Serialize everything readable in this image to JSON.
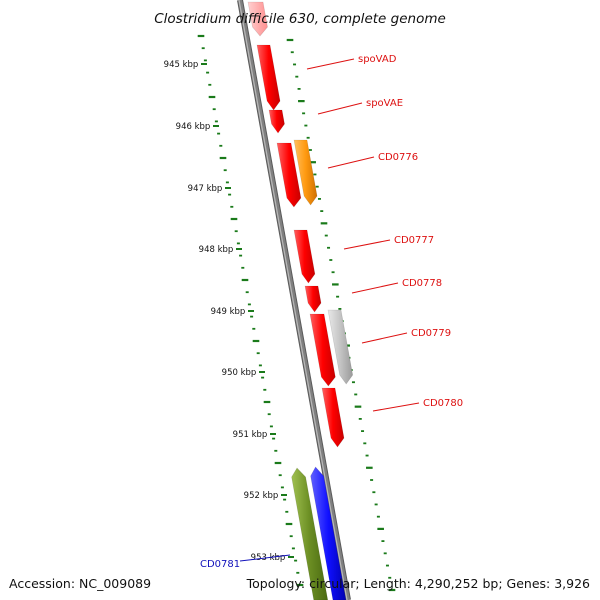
{
  "title": "Clostridium difficile 630, complete genome",
  "accession": "Accession: NC_009089",
  "topology": "Topology: circular; Length: 4,290,252 bp; Genes: 3,926",
  "ruler": [
    "945 kbp",
    "946 kbp",
    "947 kbp",
    "948 kbp",
    "949 kbp",
    "950 kbp",
    "951 kbp",
    "952 kbp",
    "953 kbp"
  ],
  "genes": [
    {
      "label": "spoVAD",
      "color": "#ff1010"
    },
    {
      "label": "spoVAE",
      "color": "#ff1010"
    },
    {
      "label": "CD0776",
      "color": "#ff9a10"
    },
    {
      "label": "CD0777",
      "color": "#ff1010"
    },
    {
      "label": "CD0778",
      "color": "#ff1010"
    },
    {
      "label": "CD0779",
      "color": "#c0c0c0"
    },
    {
      "label": "CD0780",
      "color": "#ff1010"
    },
    {
      "label": "CD0781",
      "color": "#1010ff"
    }
  ],
  "colors": {
    "label_red": "#dd1111",
    "label_blue": "#1111bb",
    "tick_green": "#1a7a1a",
    "backbone": "#808080",
    "gene_pink": "#ffb0b0",
    "gene_olive": "#6b8e23"
  }
}
